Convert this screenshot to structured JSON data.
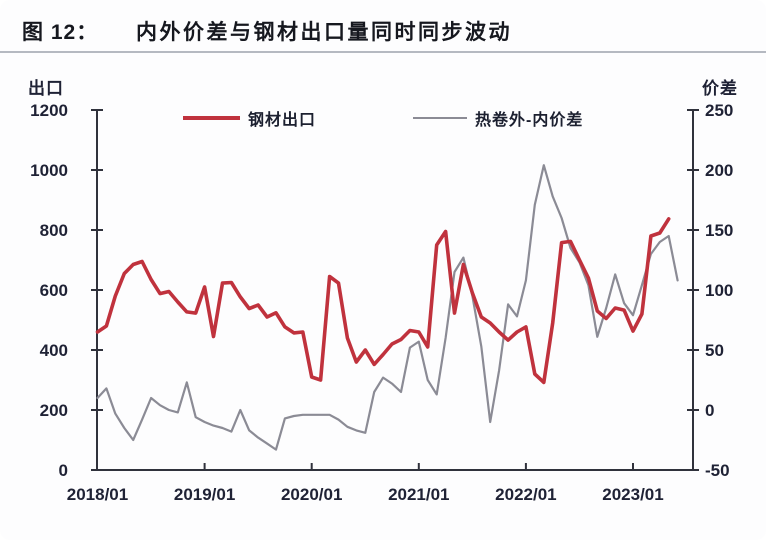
{
  "figure": {
    "label": "图 12：",
    "title": "内外价差与钢材出口量同时同步波动"
  },
  "legend": {
    "exports_label": "钢材出口",
    "spread_label": "热卷外-内价差"
  },
  "colors": {
    "exports_line": "#c0323d",
    "spread_line": "#8b8b95",
    "axis": "#30323c",
    "text": "#1f2235",
    "divider": "#b5b9c1"
  },
  "chart_data": {
    "type": "line",
    "title": "内外价差与钢材出口量同时同步波动",
    "x_tick_labels": [
      "2018/01",
      "2019/01",
      "2020/01",
      "2021/01",
      "2022/01",
      "2023/01"
    ],
    "months_between_x_ticks": 12,
    "left_axis": {
      "label": "出口",
      "min": 0,
      "max": 1200,
      "step": 200,
      "ticks": [
        0,
        200,
        400,
        600,
        800,
        1000,
        1200
      ]
    },
    "right_axis": {
      "label": "价差",
      "min": -50,
      "max": 250,
      "step": 50,
      "ticks": [
        -50,
        0,
        50,
        100,
        150,
        200,
        250
      ]
    },
    "grid": false,
    "legend_position": "top",
    "series": [
      {
        "name": "热卷外-内价差",
        "axis": "right",
        "color": "#8b8b95",
        "line_width": 2.2,
        "start_month": "2018/01",
        "values": [
          10,
          18,
          -3,
          -15,
          -25,
          -8,
          10,
          4,
          0,
          -2,
          23,
          -6,
          -10,
          -13,
          -15,
          -18,
          0,
          -17,
          -23,
          -28,
          -33,
          -7,
          -5,
          -4,
          -4,
          -4,
          -4,
          -8,
          -14,
          -17,
          -19,
          15,
          27,
          22,
          15,
          52,
          57,
          25,
          13,
          60,
          115,
          127,
          95,
          53,
          -10,
          33,
          88,
          78,
          108,
          171,
          204,
          178,
          160,
          135,
          123,
          104,
          61,
          85,
          113,
          89,
          79,
          104,
          130,
          140,
          145,
          108
        ]
      },
      {
        "name": "钢材出口",
        "axis": "left",
        "color": "#c0323d",
        "line_width": 3.6,
        "start_month": "2018/01",
        "values": [
          460,
          480,
          580,
          655,
          685,
          695,
          635,
          588,
          595,
          560,
          527,
          523,
          610,
          445,
          623,
          625,
          577,
          538,
          550,
          510,
          524,
          477,
          457,
          460,
          310,
          300,
          645,
          623,
          440,
          360,
          400,
          352,
          385,
          420,
          435,
          465,
          460,
          410,
          750,
          795,
          523,
          685,
          590,
          510,
          490,
          460,
          433,
          460,
          477,
          320,
          292,
          490,
          758,
          762,
          700,
          640,
          530,
          505,
          540,
          533,
          463,
          520,
          780,
          790,
          837
        ]
      }
    ]
  }
}
